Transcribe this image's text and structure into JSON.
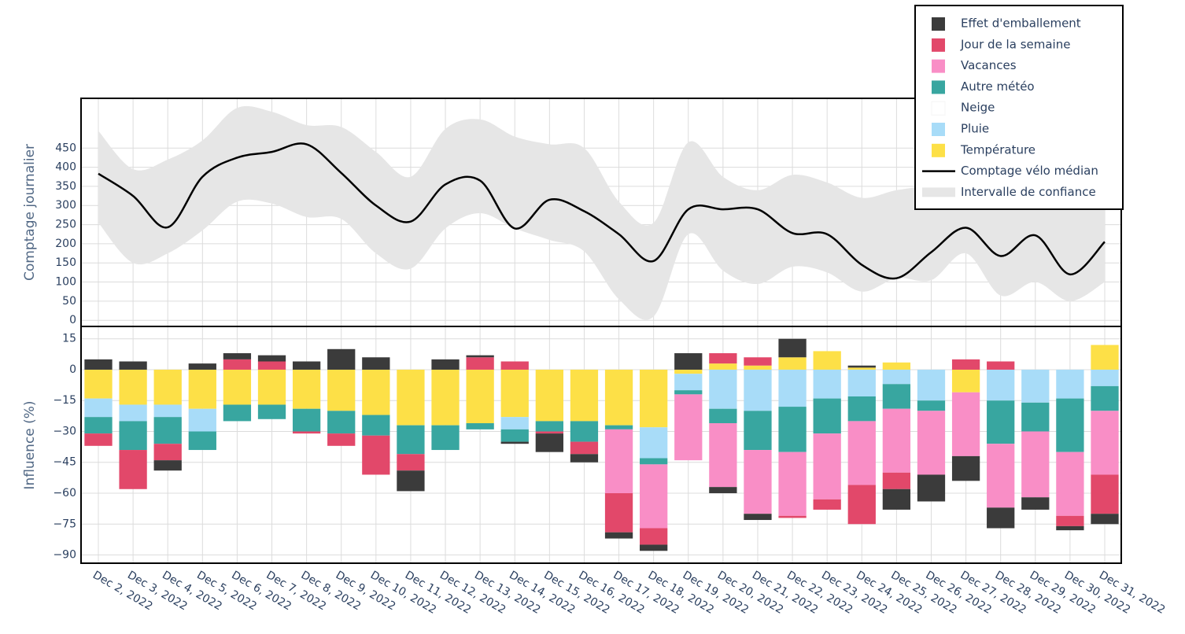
{
  "chart_data": [
    {
      "type": "line",
      "ylabel": "Comptage journalier",
      "ylim": [
        -16,
        580
      ],
      "yticks": [
        0,
        50,
        100,
        150,
        200,
        250,
        300,
        350,
        400,
        450
      ],
      "grid": true,
      "series": [
        {
          "name": "Comptage vélo médian",
          "color": "#000000",
          "values": [
            383,
            325,
            243,
            375,
            425,
            440,
            460,
            385,
            300,
            258,
            355,
            365,
            240,
            315,
            285,
            225,
            155,
            290,
            290,
            290,
            228,
            225,
            145,
            110,
            178,
            242,
            168,
            222,
            120,
            205
          ]
        },
        {
          "name": "Intervalle de confiance",
          "color": "#e6e6e6",
          "upper": [
            495,
            395,
            420,
            470,
            555,
            545,
            510,
            505,
            440,
            375,
            500,
            525,
            480,
            460,
            450,
            310,
            255,
            465,
            375,
            340,
            380,
            360,
            320,
            340,
            350,
            345,
            350,
            330,
            300,
            330
          ],
          "lower": [
            255,
            150,
            175,
            235,
            310,
            305,
            270,
            265,
            175,
            135,
            240,
            280,
            240,
            210,
            180,
            55,
            10,
            225,
            130,
            95,
            140,
            125,
            75,
            110,
            105,
            175,
            65,
            100,
            50,
            100
          ]
        }
      ]
    },
    {
      "type": "bar",
      "stacked": true,
      "ylabel": "Influence (%)",
      "categories": [
        "Dec 2, 2022",
        "Dec 3, 2022",
        "Dec 4, 2022",
        "Dec 5, 2022",
        "Dec 6, 2022",
        "Dec 7, 2022",
        "Dec 8, 2022",
        "Dec 9, 2022",
        "Dec 10, 2022",
        "Dec 11, 2022",
        "Dec 12, 2022",
        "Dec 13, 2022",
        "Dec 14, 2022",
        "Dec 15, 2022",
        "Dec 16, 2022",
        "Dec 17, 2022",
        "Dec 18, 2022",
        "Dec 19, 2022",
        "Dec 20, 2022",
        "Dec 21, 2022",
        "Dec 22, 2022",
        "Dec 23, 2022",
        "Dec 24, 2022",
        "Dec 25, 2022",
        "Dec 26, 2022",
        "Dec 27, 2022",
        "Dec 28, 2022",
        "Dec 29, 2022",
        "Dec 30, 2022",
        "Dec 31, 2022"
      ],
      "ylim": [
        -94,
        21
      ],
      "yticks": [
        15,
        0,
        {
          "value": -15,
          "label": "−15"
        },
        {
          "value": -30,
          "label": "−30"
        },
        {
          "value": -45,
          "label": "−45"
        },
        {
          "value": -60,
          "label": "−60"
        },
        {
          "value": -75,
          "label": "−75"
        },
        {
          "value": -90,
          "label": "−90"
        }
      ],
      "grid": true,
      "series": [
        {
          "name": "Effet d'emballement",
          "color": "#3b3b3b",
          "values": [
            5,
            4,
            -5,
            3,
            3,
            3,
            4,
            10,
            6,
            -10,
            5,
            1,
            -1,
            -9,
            -4,
            -3,
            -3,
            8,
            -3,
            -3,
            9,
            0,
            1,
            -10,
            -13,
            -12,
            -10,
            -6,
            -2,
            -5
          ]
        },
        {
          "name": "Jour de la semaine",
          "color": "#e2486a",
          "values": [
            -6,
            -19,
            -8,
            0,
            5,
            4,
            -1,
            -6,
            -19,
            -8,
            0,
            6,
            4,
            -1,
            -6,
            -19,
            -8,
            0,
            5,
            4,
            -1,
            -5,
            -19,
            -8,
            0,
            5,
            4,
            0,
            -5,
            -19
          ]
        },
        {
          "name": "Vacances",
          "color": "#f98ec6",
          "values": [
            0,
            0,
            0,
            0,
            0,
            0,
            0,
            0,
            0,
            0,
            0,
            0,
            0,
            0,
            0,
            -31,
            -31,
            -32,
            -31,
            -31,
            -31,
            -32,
            -31,
            -31,
            -31,
            -31,
            -31,
            -32,
            -31,
            -31
          ]
        },
        {
          "name": "Autre météo",
          "color": "#38a6a0",
          "values": [
            -8,
            -14,
            -13,
            -9,
            -8,
            -7,
            -11,
            -11,
            -10,
            -14,
            -12,
            -3,
            -6,
            -5,
            -10,
            -2,
            -3,
            -2,
            -7,
            -19,
            -22,
            -17,
            -12,
            -12,
            -5,
            0,
            -21,
            -14,
            -26,
            -12
          ]
        },
        {
          "name": "Neige",
          "color": "#ffffff",
          "values": [
            0,
            0,
            0,
            0,
            0,
            0,
            0,
            0,
            0,
            0,
            0,
            0,
            0,
            0,
            0,
            0,
            0,
            0,
            0,
            0,
            0,
            0,
            0,
            0,
            0,
            0,
            0,
            0,
            0,
            0
          ]
        },
        {
          "name": "Pluie",
          "color": "#a8dcf8",
          "values": [
            -9,
            -8,
            -6,
            -11,
            0,
            0,
            0,
            0,
            0,
            0,
            0,
            0,
            -6,
            0,
            0,
            0,
            -15,
            -8,
            -19,
            -20,
            -18,
            -14,
            -13,
            -7,
            -15,
            0,
            -15,
            -16,
            -14,
            -8
          ]
        },
        {
          "name": "Température",
          "color": "#fde047",
          "values": [
            -14,
            -17,
            -17,
            -19,
            -17,
            -17,
            -19,
            -20,
            -22,
            -27,
            -27,
            -26,
            -23,
            -25,
            -25,
            -27,
            -28,
            -2,
            3,
            2,
            6,
            9,
            1,
            3.5,
            0,
            -11,
            0,
            0,
            0,
            12
          ]
        }
      ]
    }
  ]
}
